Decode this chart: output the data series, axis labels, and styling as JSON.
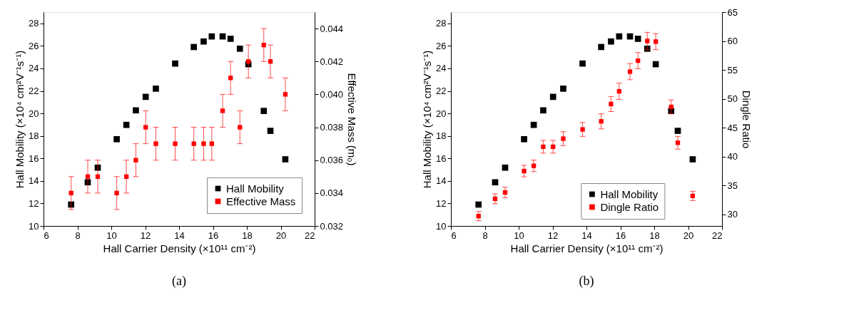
{
  "chart_data": [
    {
      "type": "scatter",
      "title": "(a)",
      "xlabel": "Hall Carrier Density (×10¹¹ cm⁻²)",
      "ylabel": "Hall Mobility (×10⁴ cm²V⁻¹s⁻¹)",
      "y2label": "Effective Mass (m₀)",
      "x": [
        7.63,
        8.61,
        9.2,
        10.32,
        10.89,
        11.45,
        12.03,
        12.63,
        13.77,
        14.87,
        15.45,
        15.93,
        16.57,
        17.04,
        17.59,
        18.09,
        19.0,
        19.39,
        20.27
      ],
      "series": [
        {
          "name": "Hall Mobility",
          "color": "#000000",
          "values": [
            11.9,
            13.88,
            15.18,
            17.71,
            18.98,
            20.27,
            21.47,
            22.2,
            24.43,
            25.9,
            26.39,
            26.84,
            26.84,
            26.63,
            25.75,
            24.37,
            20.22,
            18.45,
            15.92
          ]
        },
        {
          "name": "Effective Mass",
          "color": "#ff0000",
          "axis": "y2",
          "values": [
            0.034,
            0.035,
            0.035,
            0.034,
            0.035,
            0.036,
            0.038,
            0.037,
            0.037,
            0.037,
            0.037,
            0.037,
            0.039,
            0.041,
            0.038,
            0.042,
            0.043,
            0.042,
            0.04
          ],
          "errors": [
            0.001,
            0.001,
            0.001,
            0.001,
            0.001,
            0.001,
            0.001,
            0.001,
            0.001,
            0.001,
            0.001,
            0.001,
            0.001,
            0.001,
            0.001,
            0.001,
            0.001,
            0.001,
            0.001
          ]
        }
      ],
      "xlim": [
        6,
        22
      ],
      "xticks": [
        6,
        8,
        10,
        12,
        14,
        16,
        18,
        20,
        22
      ],
      "ylim": [
        10,
        29
      ],
      "yticks": [
        10,
        12,
        14,
        16,
        18,
        20,
        22,
        24,
        26,
        28
      ],
      "y2lim": [
        0.032,
        0.045
      ],
      "y2ticks": [
        0.032,
        0.034,
        0.036,
        0.038,
        {
          "value": 0.04,
          "label": "0.040"
        },
        0.042,
        0.044
      ],
      "marker": "square",
      "legend": "bottom right",
      "grid": false
    },
    {
      "type": "scatter",
      "title": "(b)",
      "xlabel": "Hall Carrier Density (×10¹¹ cm⁻²)",
      "ylabel": "Hall Mobility (×10⁴ cm²V⁻¹s⁻¹)",
      "y2label": "Dingle Ratio",
      "x": [
        7.63,
        8.61,
        9.2,
        10.32,
        10.89,
        11.45,
        12.03,
        12.63,
        13.77,
        14.87,
        15.45,
        15.93,
        16.57,
        17.04,
        17.59,
        18.09,
        19.0,
        19.39,
        20.27
      ],
      "series": [
        {
          "name": "Hall Mobility",
          "color": "#000000",
          "values": [
            11.9,
            13.88,
            15.18,
            17.71,
            18.98,
            20.27,
            21.47,
            22.2,
            24.43,
            25.9,
            26.39,
            26.84,
            26.84,
            26.63,
            25.75,
            24.37,
            20.22,
            18.45,
            15.92
          ]
        },
        {
          "name": "Dingle Ratio",
          "color": "#ff0000",
          "axis": "y2",
          "values": [
            29.7,
            32.7,
            33.8,
            37.5,
            38.4,
            41.7,
            41.7,
            43.1,
            44.7,
            46.1,
            49.1,
            51.3,
            54.7,
            56.6,
            60.0,
            59.9,
            48.6,
            42.4,
            33.2
          ],
          "errors": [
            0.8,
            0.85,
            0.9,
            1.0,
            1.0,
            1.1,
            1.1,
            1.2,
            1.2,
            1.3,
            1.3,
            1.4,
            1.4,
            1.4,
            1.5,
            1.4,
            1.2,
            1.1,
            0.8
          ]
        }
      ],
      "xlim": [
        6,
        22
      ],
      "xticks": [
        6,
        8,
        10,
        12,
        14,
        16,
        18,
        20,
        22
      ],
      "ylim": [
        10,
        29
      ],
      "yticks": [
        10,
        12,
        14,
        16,
        18,
        20,
        22,
        24,
        26,
        28
      ],
      "y2lim": [
        28,
        65
      ],
      "y2ticks": [
        30,
        35,
        40,
        45,
        50,
        55,
        60,
        65
      ],
      "marker": "square",
      "legend": "bottom",
      "grid": false
    }
  ]
}
